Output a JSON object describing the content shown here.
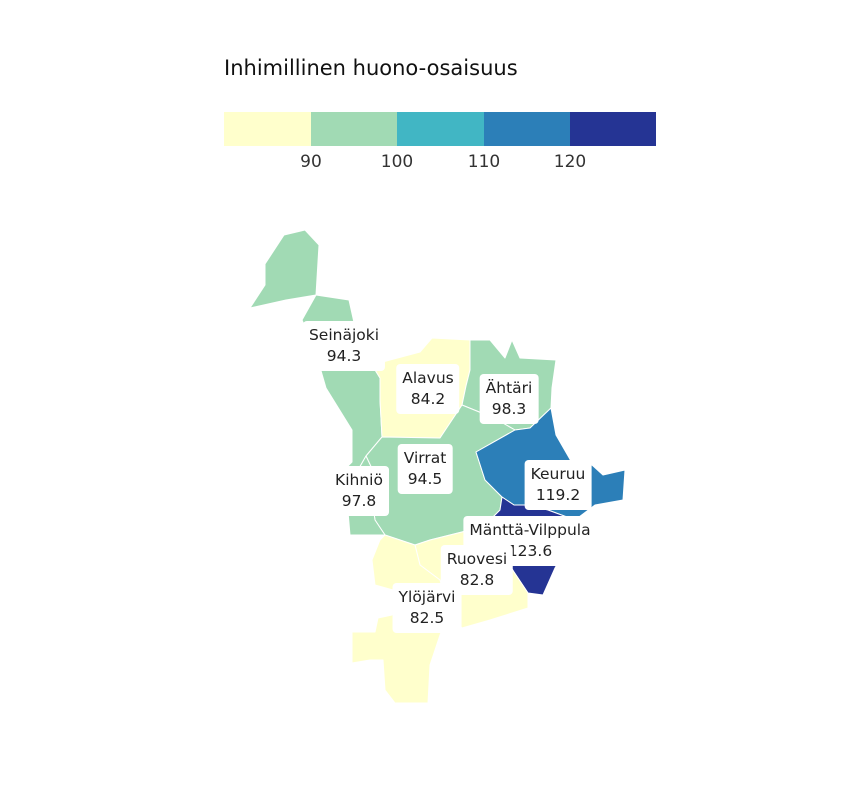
{
  "legend": {
    "title": "Inhimillinen huono-osaisuus",
    "bins": [
      {
        "color": "#ffffcc"
      },
      {
        "color": "#a1dab4"
      },
      {
        "color": "#41b6c4"
      },
      {
        "color": "#2c7fb8"
      },
      {
        "color": "#253494"
      }
    ],
    "ticks": [
      "90",
      "100",
      "110",
      "120"
    ]
  },
  "regions": [
    {
      "name": "Seinäjoki",
      "value": "94.3",
      "color": "#a1dab4"
    },
    {
      "name": "Alavus",
      "value": "84.2",
      "color": "#ffffcc"
    },
    {
      "name": "Ähtäri",
      "value": "98.3",
      "color": "#a1dab4"
    },
    {
      "name": "Virrat",
      "value": "94.5",
      "color": "#a1dab4"
    },
    {
      "name": "Kihniö",
      "value": "97.8",
      "color": "#a1dab4"
    },
    {
      "name": "Keuruu",
      "value": "119.2",
      "color": "#2c7fb8"
    },
    {
      "name": "Mänttä-Vilppula",
      "value": "123.6",
      "color": "#253494"
    },
    {
      "name": "Ruovesi",
      "value": "82.8",
      "color": "#ffffcc"
    },
    {
      "name": "Ylöjärvi",
      "value": "82.5",
      "color": "#ffffcc"
    }
  ]
}
